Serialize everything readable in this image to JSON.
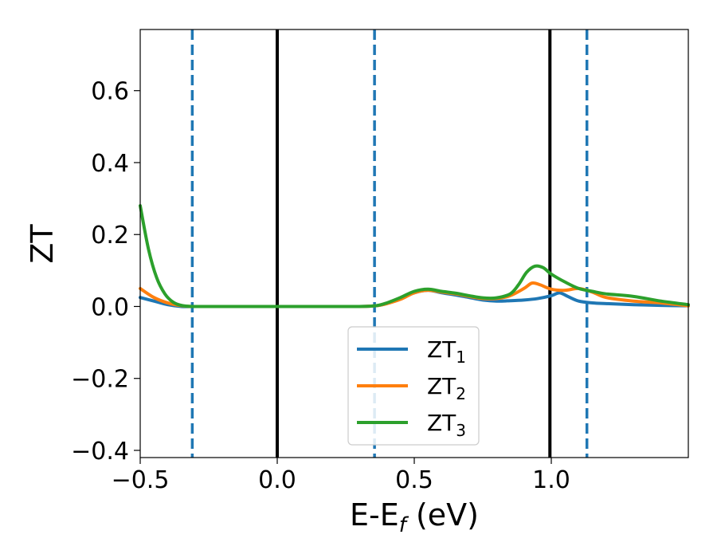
{
  "chart_data": {
    "type": "line",
    "title": "",
    "xlabel": "E-E",
    "xlabel_sub": "f",
    "xlabel_unit": " (eV)",
    "ylabel": "ZT",
    "xlim": [
      -0.5,
      1.5
    ],
    "ylim": [
      -0.42,
      0.77
    ],
    "grid": false,
    "legend_position": "lower-center",
    "x_ticks": [
      {
        "value": -0.5,
        "label": "−0.5"
      },
      {
        "value": 0.0,
        "label": "0.0"
      },
      {
        "value": 0.5,
        "label": "0.5"
      },
      {
        "value": 1.0,
        "label": "1.0"
      }
    ],
    "y_ticks": [
      {
        "value": 0.6,
        "label": "0.6"
      },
      {
        "value": 0.4,
        "label": "0.4"
      },
      {
        "value": 0.2,
        "label": "0.2"
      },
      {
        "value": 0.0,
        "label": "0.0"
      },
      {
        "value": -0.2,
        "label": "−0.2"
      },
      {
        "value": -0.4,
        "label": "−0.4"
      }
    ],
    "vlines": [
      {
        "x": -0.31,
        "style": "dashed",
        "color": "#1f77b4"
      },
      {
        "x": 0.0,
        "style": "solid",
        "color": "#000000"
      },
      {
        "x": 0.355,
        "style": "dashed",
        "color": "#1f77b4"
      },
      {
        "x": 0.995,
        "style": "solid",
        "color": "#000000"
      },
      {
        "x": 1.13,
        "style": "dashed",
        "color": "#1f77b4"
      }
    ],
    "series": [
      {
        "name": "ZT",
        "sub": "1",
        "color": "#1f77b4",
        "x": [
          -0.5,
          -0.45,
          -0.4,
          -0.35,
          -0.31,
          -0.2,
          0.0,
          0.2,
          0.3,
          0.36,
          0.4,
          0.45,
          0.5,
          0.55,
          0.6,
          0.65,
          0.7,
          0.75,
          0.8,
          0.85,
          0.9,
          0.95,
          1.0,
          1.03,
          1.06,
          1.1,
          1.15,
          1.2,
          1.3,
          1.4,
          1.5
        ],
        "y": [
          0.025,
          0.015,
          0.005,
          0.0,
          0.0,
          0.0,
          0.0,
          0.0,
          0.0,
          0.002,
          0.008,
          0.022,
          0.038,
          0.045,
          0.038,
          0.032,
          0.025,
          0.018,
          0.015,
          0.016,
          0.018,
          0.022,
          0.03,
          0.038,
          0.028,
          0.015,
          0.01,
          0.008,
          0.005,
          0.003,
          0.002
        ]
      },
      {
        "name": "ZT",
        "sub": "2",
        "color": "#ff7f0e",
        "x": [
          -0.5,
          -0.45,
          -0.4,
          -0.35,
          -0.31,
          -0.2,
          0.0,
          0.2,
          0.3,
          0.36,
          0.4,
          0.45,
          0.5,
          0.55,
          0.6,
          0.65,
          0.7,
          0.75,
          0.8,
          0.85,
          0.9,
          0.93,
          0.96,
          1.0,
          1.05,
          1.1,
          1.15,
          1.2,
          1.3,
          1.4,
          1.5
        ],
        "y": [
          0.05,
          0.025,
          0.01,
          0.002,
          0.0,
          0.0,
          0.0,
          0.0,
          0.0,
          0.002,
          0.008,
          0.02,
          0.038,
          0.045,
          0.04,
          0.035,
          0.028,
          0.022,
          0.022,
          0.03,
          0.05,
          0.065,
          0.06,
          0.048,
          0.045,
          0.05,
          0.04,
          0.025,
          0.015,
          0.01,
          0.002
        ]
      },
      {
        "name": "ZT",
        "sub": "3",
        "color": "#2ca02c",
        "x": [
          -0.5,
          -0.47,
          -0.44,
          -0.41,
          -0.38,
          -0.35,
          -0.31,
          -0.2,
          0.0,
          0.2,
          0.3,
          0.36,
          0.4,
          0.45,
          0.5,
          0.55,
          0.6,
          0.65,
          0.7,
          0.75,
          0.8,
          0.85,
          0.88,
          0.91,
          0.94,
          0.97,
          1.0,
          1.05,
          1.1,
          1.15,
          1.2,
          1.3,
          1.4,
          1.5
        ],
        "y": [
          0.28,
          0.16,
          0.08,
          0.035,
          0.012,
          0.003,
          0.0,
          0.0,
          0.0,
          0.0,
          0.0,
          0.002,
          0.01,
          0.025,
          0.042,
          0.048,
          0.042,
          0.037,
          0.03,
          0.024,
          0.024,
          0.035,
          0.06,
          0.095,
          0.112,
          0.108,
          0.09,
          0.068,
          0.05,
          0.042,
          0.035,
          0.028,
          0.015,
          0.005
        ]
      }
    ]
  }
}
